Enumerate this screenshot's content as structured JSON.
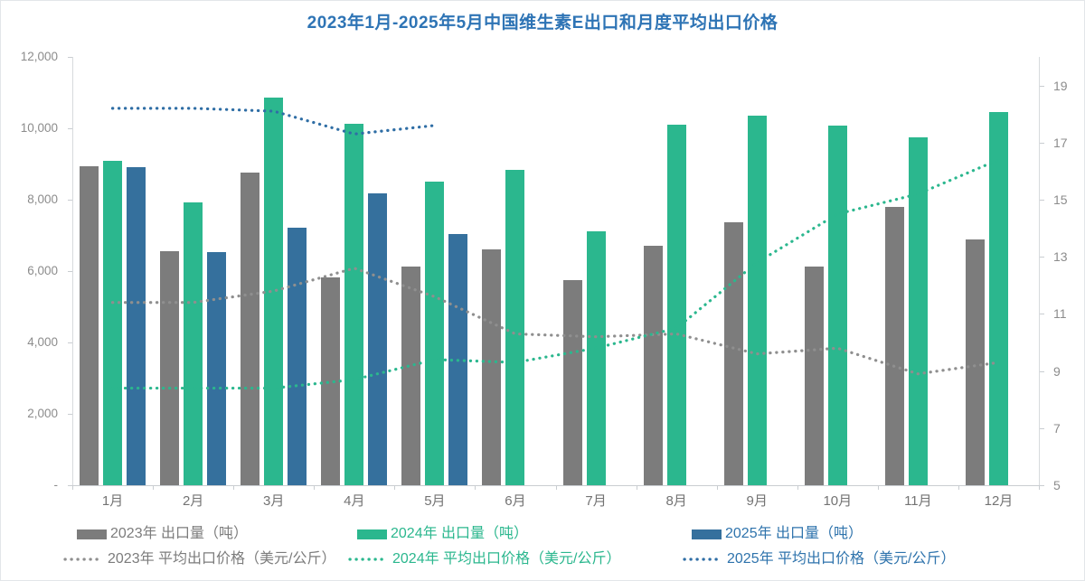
{
  "title": "2023年1月-2025年5月中国维生素E出口和月度平均出口价格",
  "title_color": "#2e74b5",
  "axis_text_color": "#8c8c8c",
  "xaxis_text_color": "#737373",
  "chart_data": {
    "type": "bar+line combo (dual axis)",
    "grid": false,
    "legend_position": "bottom",
    "categories": [
      "1月",
      "2月",
      "3月",
      "4月",
      "5月",
      "6月",
      "7月",
      "8月",
      "9月",
      "10月",
      "11月",
      "12月"
    ],
    "left_axis": {
      "label": "出口量（吨）",
      "min": 0,
      "max": 12000,
      "step": 2000,
      "tick_labels": [
        "12,000",
        "10,000",
        "8,000",
        "6,000",
        "4,000",
        "2,000",
        "-"
      ]
    },
    "right_axis": {
      "label": "平均出口价格（美元/公斤）",
      "min": 5,
      "max": 20,
      "tick_values": [
        19,
        17,
        15,
        13,
        11,
        9,
        7,
        5
      ]
    },
    "bar_series": [
      {
        "name": "2023年 出口量（吨）",
        "color": "#7c7c7c",
        "legend_color": "#7c7c7c",
        "values": [
          8940,
          6550,
          8770,
          5820,
          6120,
          6610,
          5740,
          6710,
          7370,
          6130,
          7790,
          6880
        ]
      },
      {
        "name": "2024年 出口量（吨）",
        "color": "#2bb78e",
        "legend_color": "#2bb78e",
        "values": [
          9100,
          7930,
          10850,
          10130,
          8510,
          8840,
          7110,
          10090,
          10360,
          10070,
          9750,
          10450
        ]
      },
      {
        "name": "2025年 出口量（吨）",
        "color": "#35709d",
        "legend_color": "#2e73ac",
        "values": [
          8900,
          6520,
          7220,
          8180,
          7050
        ]
      }
    ],
    "line_series": [
      {
        "name": "2023年 平均出口价格（美元/公斤）",
        "color": "#8f8f8f",
        "legend_color": "#7c7c7c",
        "values": [
          11.4,
          11.4,
          11.8,
          12.6,
          11.6,
          10.3,
          10.2,
          10.3,
          9.6,
          9.8,
          8.9,
          9.3
        ]
      },
      {
        "name": "2024年 平均出口价格（美元/公斤）",
        "color": "#2bb78e",
        "legend_color": "#2bb78e",
        "values": [
          8.4,
          8.4,
          8.4,
          8.7,
          9.4,
          9.3,
          9.8,
          10.5,
          12.8,
          14.5,
          15.2,
          16.4
        ]
      },
      {
        "name": "2025年 平均出口价格（美元/公斤）",
        "color": "#2f6ea5",
        "legend_color": "#2e73ac",
        "values": [
          18.2,
          18.2,
          18.1,
          17.3,
          17.6
        ]
      }
    ]
  }
}
